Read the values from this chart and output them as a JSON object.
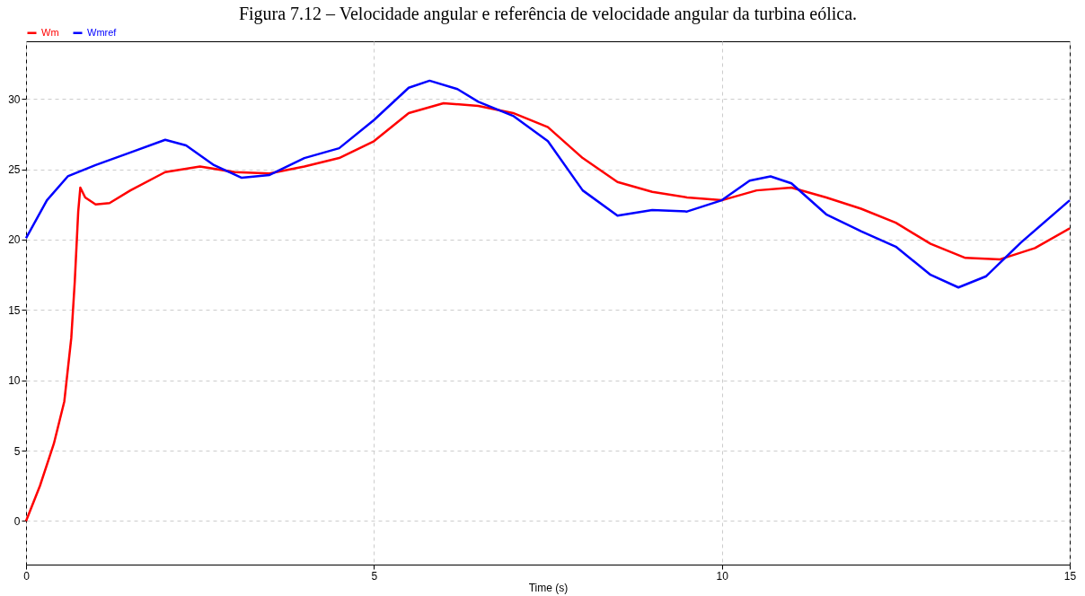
{
  "chart_data": {
    "type": "line",
    "title": "Figura 7.12 – Velocidade angular e referência de velocidade angular da turbina eólica.",
    "xlabel": "Time (s)",
    "xlim": [
      0,
      15
    ],
    "xticks": [
      0,
      5,
      10,
      15
    ],
    "ylim": [
      -3.1,
      34.1
    ],
    "yticks": [
      0,
      5,
      10,
      15,
      20,
      25,
      30
    ],
    "grid": true,
    "legend": "top left",
    "line_style": "solid",
    "marker": "none",
    "series": [
      {
        "name": "Wm",
        "color": "#ff0000",
        "x": [
          0,
          0.2,
          0.4,
          0.55,
          0.65,
          0.7,
          0.75,
          0.78,
          0.85,
          1.0,
          1.2,
          1.5,
          2,
          2.5,
          3,
          3.5,
          4,
          4.5,
          5,
          5.5,
          6,
          6.5,
          7,
          7.5,
          8,
          8.5,
          9,
          9.5,
          10,
          10.5,
          11,
          11.5,
          12,
          12.5,
          13,
          13.5,
          14,
          14.5,
          15
        ],
        "values": [
          0,
          2.5,
          5.5,
          8.5,
          13,
          17,
          22,
          23.7,
          23,
          22.5,
          22.6,
          23.5,
          24.8,
          25.2,
          24.8,
          24.7,
          25.2,
          25.8,
          27,
          29,
          29.7,
          29.5,
          29,
          28,
          25.8,
          24.1,
          23.4,
          23,
          22.8,
          23.5,
          23.7,
          23,
          22.2,
          21.2,
          19.7,
          18.7,
          18.6,
          19.4,
          20.8
        ]
      },
      {
        "name": "Wmref",
        "color": "#0000ff",
        "x": [
          0,
          0.3,
          0.6,
          1,
          1.5,
          2,
          2.3,
          2.7,
          3.1,
          3.5,
          4,
          4.5,
          5,
          5.5,
          5.8,
          6.2,
          6.5,
          7,
          7.5,
          8,
          8.5,
          9,
          9.5,
          10,
          10.4,
          10.7,
          11,
          11.5,
          12,
          12.5,
          13,
          13.4,
          13.8,
          14.3,
          15
        ],
        "values": [
          20.1,
          22.8,
          24.5,
          25.3,
          26.2,
          27.1,
          26.7,
          25.3,
          24.4,
          24.6,
          25.8,
          26.5,
          28.5,
          30.8,
          31.3,
          30.7,
          29.8,
          28.8,
          27,
          23.5,
          21.7,
          22.1,
          22,
          22.8,
          24.2,
          24.5,
          24,
          21.8,
          20.6,
          19.5,
          17.5,
          16.6,
          17.4,
          19.8,
          22.8
        ]
      }
    ]
  }
}
